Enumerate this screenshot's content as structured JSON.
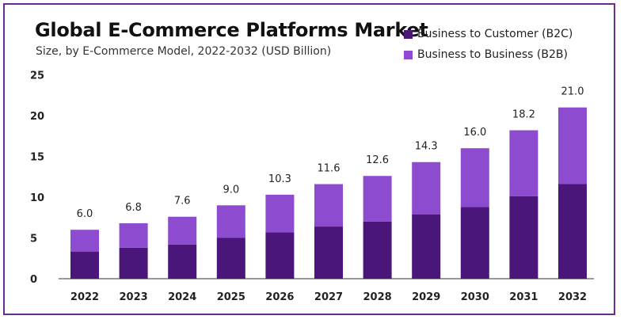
{
  "chart_data": {
    "type": "bar",
    "stacked": true,
    "title": "Global E-Commerce Platforms Market",
    "subtitle": "Size, by E-Commerce Model, 2022-2032 (USD Billion)",
    "categories": [
      "2022",
      "2023",
      "2024",
      "2025",
      "2026",
      "2027",
      "2028",
      "2029",
      "2030",
      "2031",
      "2032"
    ],
    "totals": [
      "6.0",
      "6.8",
      "7.6",
      "9.0",
      "10.3",
      "11.6",
      "12.6",
      "14.3",
      "16.0",
      "18.2",
      "21.0"
    ],
    "series": [
      {
        "name": "Business to Customer (B2C)",
        "color": "#4b1679",
        "values": [
          3.3,
          3.8,
          4.2,
          5.0,
          5.7,
          6.4,
          7.0,
          7.9,
          8.8,
          10.1,
          11.6
        ]
      },
      {
        "name": "Business to Business (B2B)",
        "color": "#8d4ccf",
        "values": [
          2.7,
          3.0,
          3.4,
          4.0,
          4.6,
          5.2,
          5.6,
          6.4,
          7.2,
          8.1,
          9.4
        ]
      }
    ],
    "yticks": [
      "0",
      "5",
      "10",
      "15",
      "20",
      "25"
    ],
    "ylim": [
      0,
      25
    ],
    "legend_position": "top-right",
    "grid": false
  }
}
